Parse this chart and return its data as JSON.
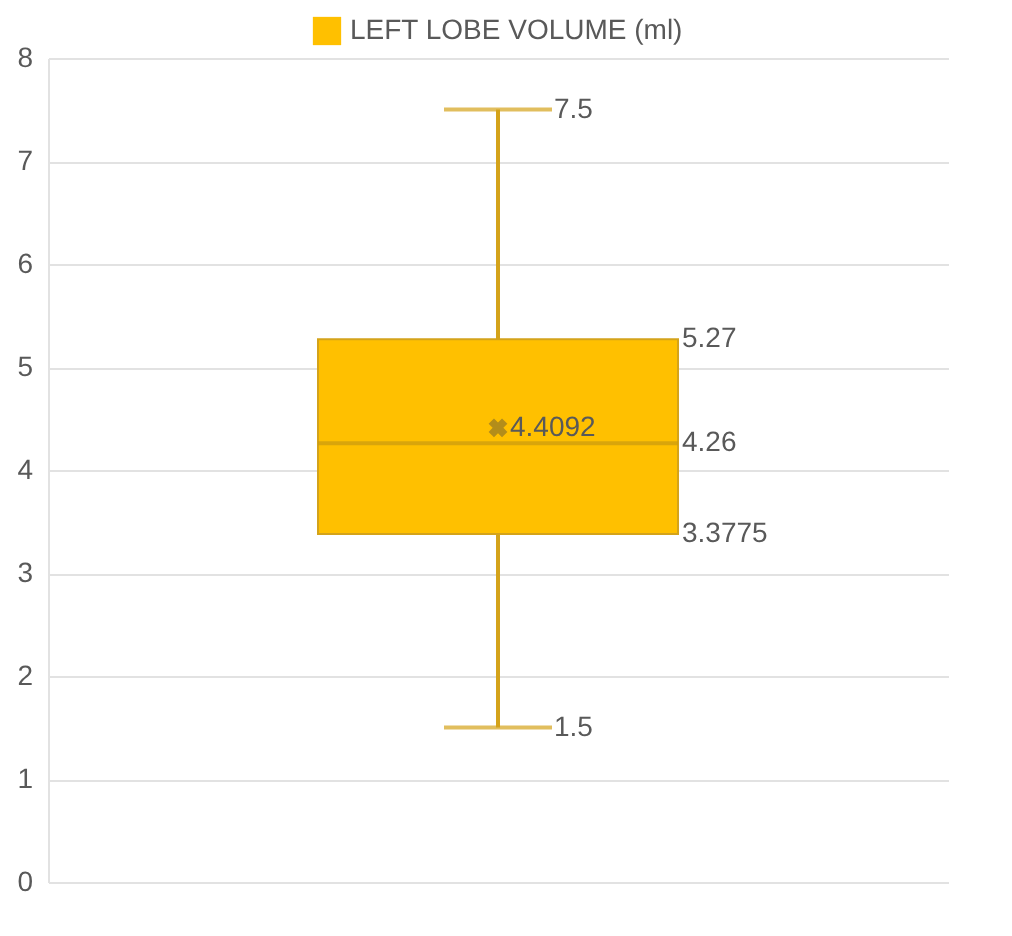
{
  "chart_data": {
    "type": "box",
    "categories": [
      null
    ],
    "series": [
      {
        "name": "LEFT LOBE VOLUME (ml)",
        "color": "#ffc000",
        "boxes": [
          {
            "low": 1.5,
            "q1": 3.3775,
            "median": 4.26,
            "q3": 5.27,
            "high": 7.5,
            "mean": 4.4092
          }
        ]
      }
    ],
    "ylim": [
      0,
      8
    ],
    "yticks": [
      0,
      1,
      2,
      3,
      4,
      5,
      6,
      7,
      8
    ],
    "grid": "y",
    "legend": "top",
    "data_labels": true,
    "annotations": [
      "7.5",
      "5.27",
      "4.4092",
      "4.26",
      "3.3775",
      "1.5"
    ]
  }
}
